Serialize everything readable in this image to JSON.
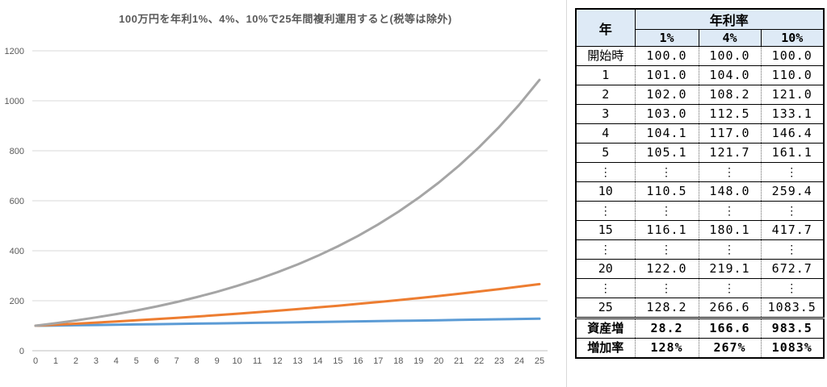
{
  "chart_data": {
    "type": "line",
    "title": "100万円を年利1%、4%、10%で25年間複利運用すると(税等は除外)",
    "x": [
      0,
      1,
      2,
      3,
      4,
      5,
      6,
      7,
      8,
      9,
      10,
      11,
      12,
      13,
      14,
      15,
      16,
      17,
      18,
      19,
      20,
      21,
      22,
      23,
      24,
      25
    ],
    "xlabel": "",
    "ylabel": "",
    "ylim": [
      0,
      1200
    ],
    "ytick_step": 200,
    "grid": true,
    "legend": "none",
    "axis_color": "#bfbfbf",
    "grid_color": "#d9d9d9",
    "tick_color": "#595959",
    "series": [
      {
        "name": "1%",
        "color": "#5B9BD5",
        "values": [
          100.0,
          101.0,
          102.0,
          103.0,
          104.1,
          105.1,
          106.2,
          107.2,
          108.3,
          109.4,
          110.5,
          111.6,
          112.7,
          113.8,
          114.9,
          116.1,
          117.3,
          118.4,
          119.6,
          120.8,
          122.0,
          123.2,
          124.5,
          125.7,
          127.0,
          128.2
        ]
      },
      {
        "name": "4%",
        "color": "#ED7D31",
        "values": [
          100.0,
          104.0,
          108.2,
          112.5,
          117.0,
          121.7,
          126.5,
          131.6,
          136.9,
          142.3,
          148.0,
          153.9,
          160.1,
          166.5,
          173.2,
          180.1,
          187.3,
          194.8,
          202.6,
          210.7,
          219.1,
          227.9,
          237.0,
          246.5,
          256.3,
          266.6
        ]
      },
      {
        "name": "10%",
        "color": "#A5A5A5",
        "values": [
          100.0,
          110.0,
          121.0,
          133.1,
          146.4,
          161.1,
          177.2,
          194.9,
          214.4,
          235.8,
          259.4,
          285.3,
          313.8,
          345.2,
          379.7,
          417.7,
          459.5,
          505.4,
          556.0,
          611.6,
          672.7,
          740.0,
          814.0,
          895.4,
          984.9,
          1083.5
        ]
      }
    ]
  },
  "table": {
    "header_fill": "#deeaf6",
    "year_header": "年",
    "rate_header": "年利率",
    "rate_columns": [
      "1%",
      "4%",
      "10%"
    ],
    "rows": [
      {
        "label": "開始時",
        "cjk": true,
        "values": [
          "100.0",
          "100.0",
          "100.0"
        ]
      },
      {
        "label": "1",
        "values": [
          "101.0",
          "104.0",
          "110.0"
        ]
      },
      {
        "label": "2",
        "values": [
          "102.0",
          "108.2",
          "121.0"
        ]
      },
      {
        "label": "3",
        "values": [
          "103.0",
          "112.5",
          "133.1"
        ]
      },
      {
        "label": "4",
        "values": [
          "104.1",
          "117.0",
          "146.4"
        ]
      },
      {
        "label": "5",
        "values": [
          "105.1",
          "121.7",
          "161.1"
        ]
      },
      {
        "label": "⋮",
        "ellipsis": true,
        "values": [
          "⋮",
          "⋮",
          "⋮"
        ]
      },
      {
        "label": "10",
        "values": [
          "110.5",
          "148.0",
          "259.4"
        ]
      },
      {
        "label": "⋮",
        "ellipsis": true,
        "values": [
          "⋮",
          "⋮",
          "⋮"
        ]
      },
      {
        "label": "15",
        "values": [
          "116.1",
          "180.1",
          "417.7"
        ]
      },
      {
        "label": "⋮",
        "ellipsis": true,
        "values": [
          "⋮",
          "⋮",
          "⋮"
        ]
      },
      {
        "label": "20",
        "values": [
          "122.0",
          "219.1",
          "672.7"
        ]
      },
      {
        "label": "⋮",
        "ellipsis": true,
        "values": [
          "⋮",
          "⋮",
          "⋮"
        ]
      },
      {
        "label": "25",
        "values": [
          "128.2",
          "266.6",
          "1083.5"
        ],
        "separator_after": "double"
      },
      {
        "label": "資産増",
        "cjk": true,
        "bold": true,
        "values": [
          "28.2",
          "166.6",
          "983.5"
        ]
      },
      {
        "label": "増加率",
        "cjk": true,
        "bold": true,
        "values": [
          "128%",
          "267%",
          "1083%"
        ]
      }
    ]
  }
}
